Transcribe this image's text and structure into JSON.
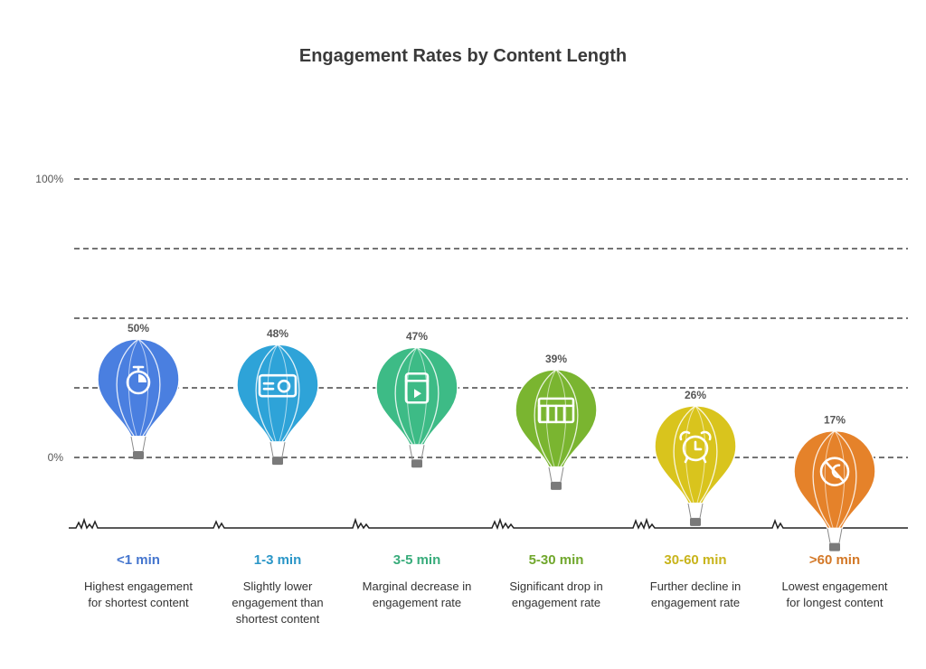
{
  "chart_data": {
    "type": "scatter",
    "title": "Engagement Rates by Content Length",
    "y_ticks": [
      "100%",
      "0%"
    ],
    "ylim": [
      0,
      100
    ],
    "grid": true,
    "categories": [
      "<1 min",
      "1-3 min",
      "3-5 min",
      "5-30 min",
      "30-60 min",
      ">60 min"
    ],
    "values": [
      50,
      48,
      47,
      39,
      26,
      17
    ],
    "value_labels": [
      "50%",
      "48%",
      "47%",
      "39%",
      "26%",
      "17%"
    ],
    "descriptions": [
      [
        "Highest engagement",
        "for shortest content"
      ],
      [
        "Slightly lower",
        "engagement than",
        "shortest content"
      ],
      [
        "Marginal decrease in",
        "engagement rate"
      ],
      [
        "Significant drop in",
        "engagement rate"
      ],
      [
        "Further decline in",
        "engagement rate"
      ],
      [
        "Lowest engagement",
        "for longest content"
      ]
    ],
    "colors": [
      "#4a7fe0",
      "#2ea3d8",
      "#3dbb86",
      "#7ab530",
      "#d9c41d",
      "#e5822a"
    ],
    "icons": [
      "stopwatch-icon",
      "camera-icon",
      "video-player-icon",
      "film-strip-icon",
      "alarm-clock-icon",
      "no-time-icon"
    ]
  }
}
